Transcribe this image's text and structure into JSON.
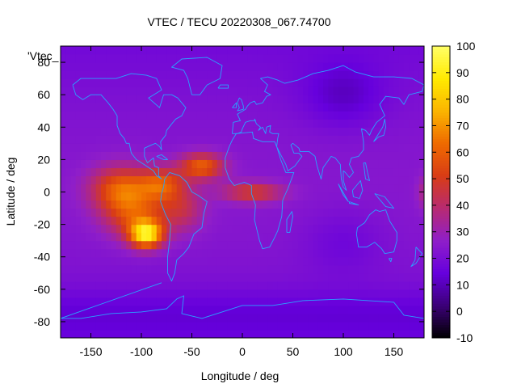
{
  "chart_data": {
    "type": "heatmap",
    "title": "VTEC / TECU 20220308_067.74700",
    "xlabel": "Longitude / deg",
    "ylabel": "Latitude / deg",
    "key_label": "'Vtec_",
    "xlim": [
      -180,
      180
    ],
    "ylim": [
      -90,
      90
    ],
    "x_ticks": [
      -150,
      -100,
      -50,
      0,
      50,
      100,
      150
    ],
    "y_ticks": [
      -80,
      -60,
      -40,
      -20,
      0,
      20,
      40,
      60,
      80
    ],
    "colorbar": {
      "range": [
        -10,
        100
      ],
      "ticks": [
        -10,
        0,
        10,
        20,
        30,
        40,
        50,
        60,
        70,
        80,
        90,
        100
      ],
      "palette": [
        "#000000",
        "#3b0077",
        "#6600dd",
        "#8f1ec9",
        "#b72a72",
        "#d83c16",
        "#ef6a00",
        "#fbb400",
        "#ffea00",
        "#ffff66"
      ]
    },
    "grid": false,
    "description_peaks": [
      {
        "lon": -95,
        "lat": -26,
        "vtec": 100
      },
      {
        "lon": -120,
        "lat": 0,
        "vtec": 70
      },
      {
        "lon": -40,
        "lat": 18,
        "vtec": 65
      },
      {
        "lon": 20,
        "lat": 0,
        "vtec": 55
      }
    ],
    "background_vtec": 18,
    "colors": {
      "coastline": "#29a3ff",
      "background_purple": "#6b11d8"
    }
  }
}
